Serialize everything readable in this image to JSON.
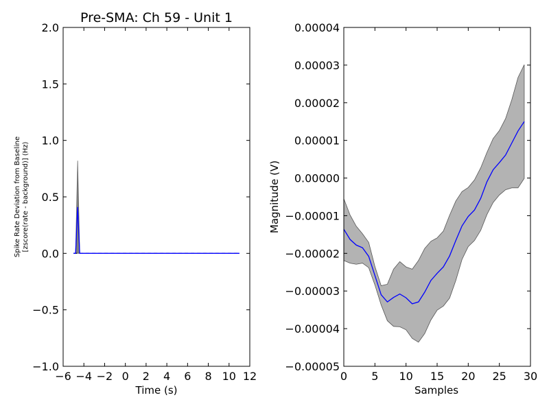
{
  "chart_data": [
    {
      "type": "line",
      "title": "Pre-SMA: Ch 59 - Unit 1",
      "xlabel": "Time (s)",
      "ylabel_lines": [
        "Spike Rate Deviation from Baseline",
        "[zscore(rate - background)] (Hz)"
      ],
      "xlim": [
        -6,
        12
      ],
      "ylim": [
        -1.0,
        2.0
      ],
      "xticks": [
        -6,
        -4,
        -2,
        0,
        2,
        4,
        6,
        8,
        10,
        12
      ],
      "xtick_labels": [
        "−6",
        "−4",
        "−2",
        "0",
        "2",
        "4",
        "6",
        "8",
        "10",
        "12"
      ],
      "yticks": [
        -1.0,
        -0.5,
        0.0,
        0.5,
        1.0,
        1.5,
        2.0
      ],
      "ytick_labels": [
        "−1.0",
        "−0.5",
        "0.0",
        "0.5",
        "1.0",
        "1.5",
        "2.0"
      ],
      "grid": false,
      "colors": {
        "mean": "#0000ff",
        "band": "#808080"
      },
      "x": [
        -5.0,
        -4.8,
        -4.6,
        -4.4,
        -4.2,
        -4.0,
        -3.0,
        -2.0,
        -1.0,
        0.0,
        1.0,
        2.0,
        3.0,
        4.0,
        5.0,
        6.0,
        7.0,
        8.0,
        9.0,
        10.0,
        11.0
      ],
      "mean": [
        0,
        0,
        0.41,
        0,
        0,
        0,
        0,
        0,
        0,
        0,
        0,
        0,
        0,
        0,
        0,
        0,
        0,
        0,
        0,
        0,
        0
      ],
      "upper": [
        0,
        0,
        0.82,
        0,
        0,
        0,
        0,
        0,
        0,
        0,
        0,
        0,
        0,
        0,
        0,
        0,
        0,
        0,
        0,
        0,
        0
      ],
      "lower": [
        0,
        0,
        0,
        0,
        0,
        0,
        0,
        0,
        0,
        0,
        0,
        0,
        0,
        0,
        0,
        0,
        0,
        0,
        0,
        0,
        0
      ]
    },
    {
      "type": "area",
      "title": "",
      "xlabel": "Samples",
      "ylabel": "Magnitude (V)",
      "xlim": [
        0,
        30
      ],
      "ylim": [
        -5e-05,
        4e-05
      ],
      "xticks": [
        0,
        5,
        10,
        15,
        20,
        25,
        30
      ],
      "xtick_labels": [
        "0",
        "5",
        "10",
        "15",
        "20",
        "25",
        "30"
      ],
      "yticks": [
        -5e-05,
        -4e-05,
        -3e-05,
        -2e-05,
        -1e-05,
        0.0,
        1e-05,
        2e-05,
        3e-05,
        4e-05
      ],
      "ytick_labels": [
        "−0.00005",
        "−0.00004",
        "−0.00003",
        "−0.00002",
        "−0.00001",
        "0.00000",
        "0.00001",
        "0.00002",
        "0.00003",
        "0.00004"
      ],
      "grid": false,
      "colors": {
        "mean": "#0000ff",
        "band": "#b3b3b3"
      },
      "x": [
        0,
        1,
        2,
        3,
        4,
        5,
        6,
        7,
        8,
        9,
        10,
        11,
        12,
        13,
        14,
        15,
        16,
        17,
        18,
        19,
        20,
        21,
        22,
        23,
        24,
        25,
        26,
        27,
        28,
        29
      ],
      "mean": [
        -1.36e-05,
        -1.63e-05,
        -1.78e-05,
        -1.85e-05,
        -2.08e-05,
        -2.59e-05,
        -3.1e-05,
        -3.29e-05,
        -3.17e-05,
        -3.08e-05,
        -3.18e-05,
        -3.34e-05,
        -3.29e-05,
        -3.03e-05,
        -2.72e-05,
        -2.53e-05,
        -2.36e-05,
        -2.07e-05,
        -1.66e-05,
        -1.27e-05,
        -1.02e-05,
        -8.5e-06,
        -5.4e-06,
        -1e-06,
        2.2e-06,
        4.1e-06,
        6.1e-06,
        9.3e-06,
        1.25e-05,
        1.5e-05
      ],
      "upper": [
        -5.5e-06,
        -9.8e-06,
        -1.28e-05,
        -1.48e-05,
        -1.71e-05,
        -2.35e-05,
        -2.86e-05,
        -2.82e-05,
        -2.42e-05,
        -2.22e-05,
        -2.36e-05,
        -2.42e-05,
        -2.19e-05,
        -1.87e-05,
        -1.68e-05,
        -1.59e-05,
        -1.41e-05,
        -9.9e-06,
        -6.1e-06,
        -3.6e-06,
        -2.5e-06,
        -5e-07,
        2.7e-06,
        6.8e-06,
        1.05e-05,
        1.26e-05,
        1.58e-05,
        2.08e-05,
        2.67e-05,
        3.01e-05
      ],
      "lower": [
        -2.19e-05,
        -2.26e-05,
        -2.29e-05,
        -2.26e-05,
        -2.38e-05,
        -2.84e-05,
        -3.37e-05,
        -3.79e-05,
        -3.94e-05,
        -3.95e-05,
        -4.03e-05,
        -4.26e-05,
        -4.36e-05,
        -4.13e-05,
        -3.77e-05,
        -3.51e-05,
        -3.4e-05,
        -3.19e-05,
        -2.72e-05,
        -2.16e-05,
        -1.82e-05,
        -1.66e-05,
        -1.39e-05,
        -9.7e-06,
        -6.5e-06,
        -4.5e-06,
        -3.1e-06,
        -2.6e-06,
        -2.6e-06,
        -1e-07
      ]
    }
  ]
}
